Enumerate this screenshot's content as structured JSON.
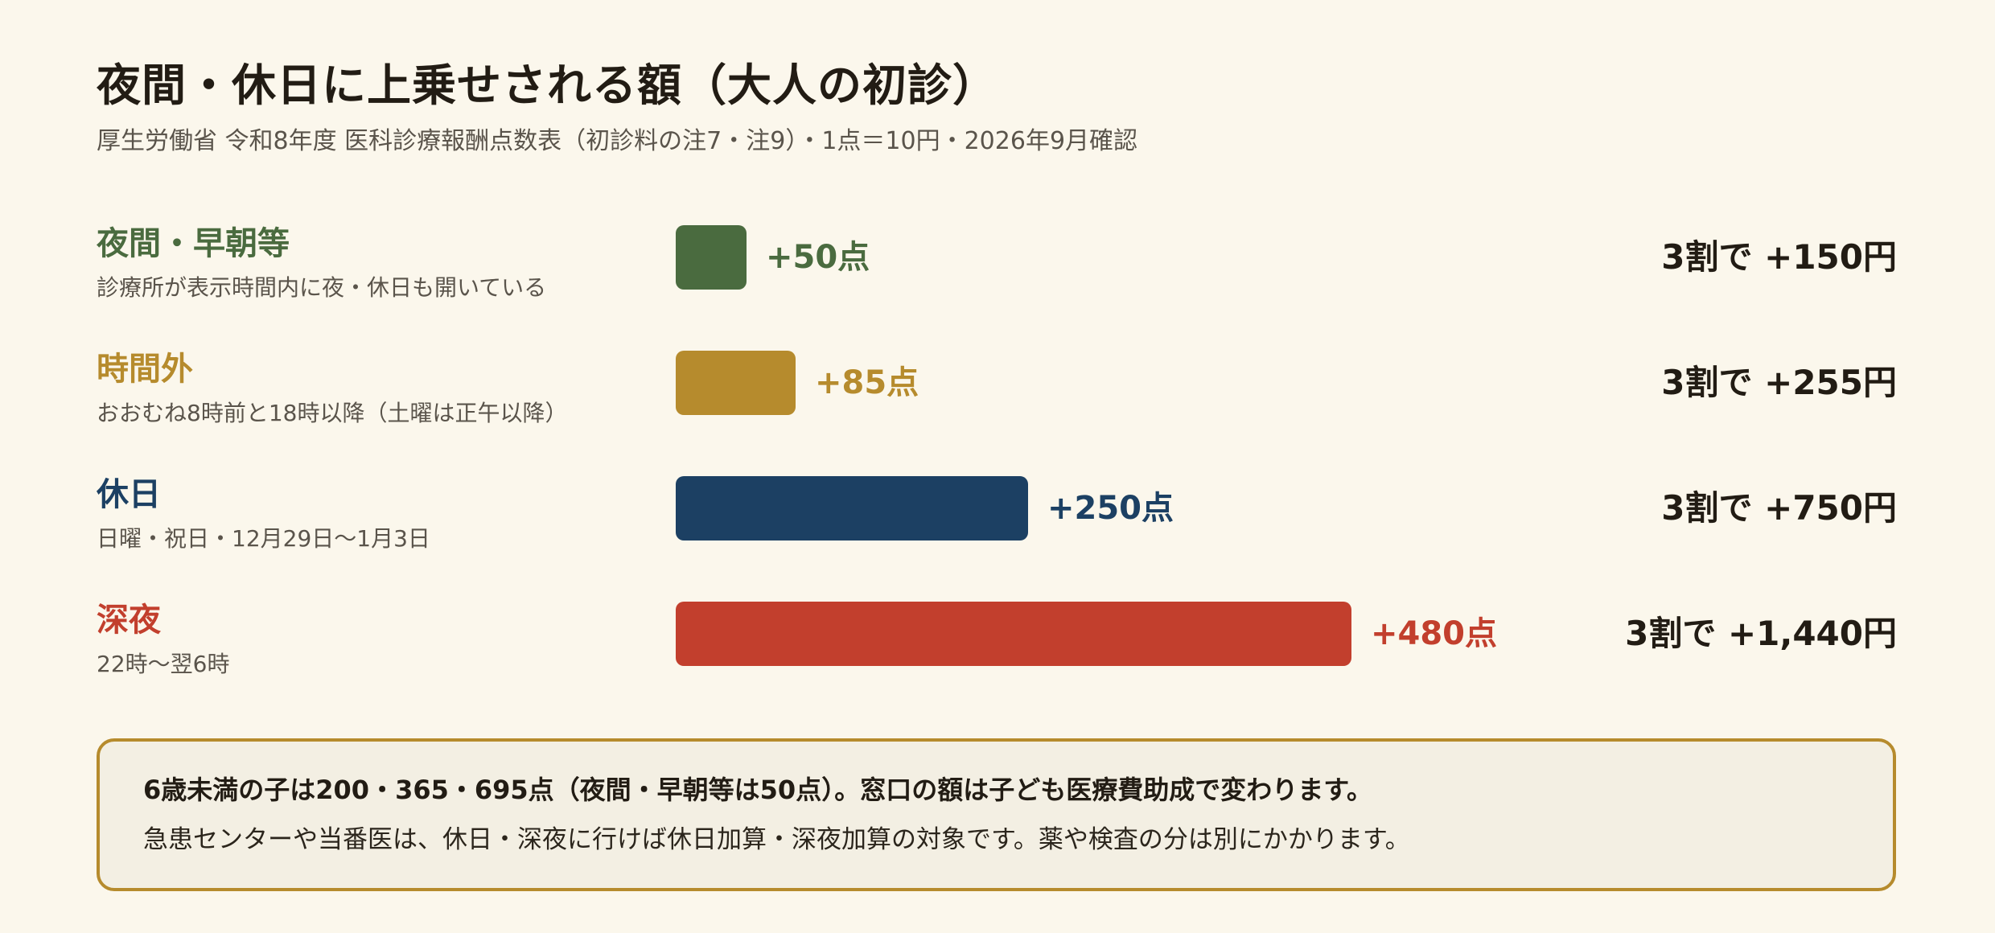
{
  "title": "夜間・休日に上乗せされる額（大人の初診）",
  "subtitle": "厚生労働省 令和8年度 医科診療報酬点数表（初診料の注7・注9）・1点＝10円・2026年9月確認",
  "chart_data": {
    "type": "bar",
    "orientation": "horizontal",
    "categories": [
      "夜間・早朝等",
      "時間外",
      "休日",
      "深夜"
    ],
    "category_notes": [
      "診療所が表示時間内に夜・休日も開いている",
      "おおむね8時前と18時以降（土曜は正午以降）",
      "日曜・祝日・12月29日〜1月3日",
      "22時〜翌6時"
    ],
    "values": [
      50,
      85,
      250,
      480
    ],
    "value_labels": [
      "+50点",
      "+85点",
      "+250点",
      "+480点"
    ],
    "yen_labels": [
      "3割で +150円",
      "3割で +255円",
      "3割で +750円",
      "3割で +1,440円"
    ],
    "colors": [
      "#4a6b3f",
      "#b68b2d",
      "#1c4063",
      "#c23f2d"
    ],
    "xlim": [
      0,
      480
    ],
    "grid": false,
    "legend": "none"
  },
  "footnote": {
    "line1": "6歳未満の子は200・365・695点（夜間・早朝等は50点）。窓口の額は子ども医療費助成で変わります。",
    "line2": "急患センターや当番医は、休日・深夜に行けば休日加算・深夜加算の対象です。薬や検査の分は別にかかります。"
  }
}
